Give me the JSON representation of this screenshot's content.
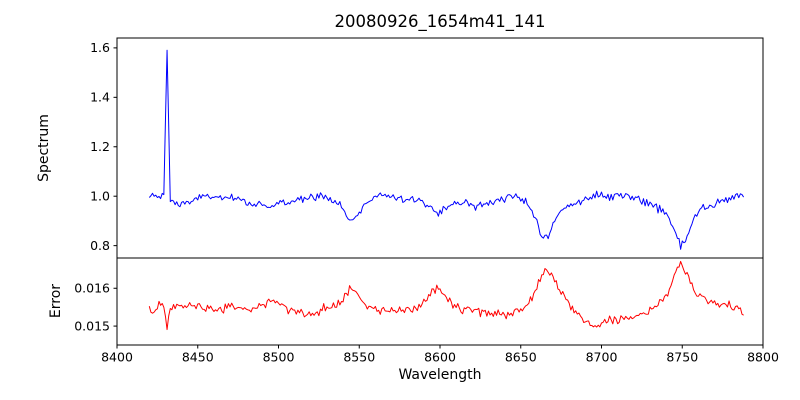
{
  "chart_data": {
    "type": "line",
    "title": "20080926_1654m41_141",
    "xlabel": "Wavelength",
    "xlim": [
      8400,
      8800
    ],
    "xticks": [
      8400,
      8450,
      8500,
      8550,
      8600,
      8650,
      8700,
      8750,
      8800
    ],
    "xtick_labels": [
      "8400",
      "8450",
      "8500",
      "8550",
      "8600",
      "8650",
      "8700",
      "8750",
      "8800"
    ],
    "grid": false,
    "legend": "none",
    "x": [
      8420,
      8423,
      8426,
      8429,
      8431,
      8433,
      8436,
      8440,
      8444,
      8448,
      8452,
      8456,
      8460,
      8464,
      8468,
      8472,
      8476,
      8480,
      8484,
      8488,
      8492,
      8496,
      8500,
      8504,
      8508,
      8512,
      8516,
      8520,
      8524,
      8528,
      8532,
      8536,
      8540,
      8544,
      8547,
      8550,
      8554,
      8558,
      8562,
      8566,
      8570,
      8574,
      8578,
      8582,
      8586,
      8590,
      8594,
      8598,
      8601,
      8605,
      8609,
      8613,
      8617,
      8621,
      8625,
      8629,
      8633,
      8637,
      8641,
      8645,
      8649,
      8653,
      8657,
      8661,
      8664,
      8667,
      8670,
      8674,
      8678,
      8682,
      8686,
      8690,
      8694,
      8698,
      8702,
      8706,
      8710,
      8714,
      8718,
      8722,
      8726,
      8730,
      8734,
      8738,
      8742,
      8746,
      8749,
      8752,
      8755,
      8758,
      8762,
      8766,
      8770,
      8774,
      8778,
      8782,
      8786,
      8788
    ],
    "panels": [
      {
        "name": "spectrum",
        "ylabel": "Spectrum",
        "line_color": "#0000ff",
        "ylim": [
          0.75,
          1.64
        ],
        "yticks": [
          0.8,
          1.0,
          1.2,
          1.4,
          1.6
        ],
        "ytick_labels": [
          "0.8",
          "1.0",
          "1.2",
          "1.4",
          "1.6"
        ],
        "noise_sigma": 0.008,
        "y": [
          1.0,
          0.995,
          1.0,
          1.005,
          1.59,
          0.985,
          0.97,
          0.972,
          0.975,
          0.985,
          0.995,
          1.0,
          1.0,
          0.995,
          0.985,
          0.99,
          0.985,
          0.972,
          0.968,
          0.972,
          0.962,
          0.96,
          0.968,
          0.972,
          0.975,
          0.985,
          0.995,
          1.002,
          1.005,
          1.0,
          0.99,
          0.975,
          0.945,
          0.905,
          0.9,
          0.935,
          0.97,
          0.995,
          1.005,
          1.005,
          1.0,
          0.998,
          0.995,
          0.99,
          0.985,
          0.972,
          0.95,
          0.935,
          0.945,
          0.96,
          0.97,
          0.975,
          0.972,
          0.963,
          0.96,
          0.972,
          0.982,
          0.988,
          0.992,
          0.995,
          0.992,
          0.98,
          0.945,
          0.88,
          0.838,
          0.835,
          0.885,
          0.93,
          0.955,
          0.97,
          0.978,
          0.988,
          0.995,
          1.0,
          1.002,
          1.005,
          1.005,
          1.0,
          0.998,
          0.992,
          0.985,
          0.975,
          0.962,
          0.942,
          0.908,
          0.848,
          0.8,
          0.818,
          0.87,
          0.915,
          0.945,
          0.958,
          0.968,
          0.975,
          0.985,
          0.992,
          1.0,
          1.01
        ],
        "features": {
          "emission_spike": {
            "x": 8431,
            "peak": 1.59
          },
          "absorption_minima": [
            {
              "x": 8545,
              "y": 0.9
            },
            {
              "x": 8598,
              "y": 0.935
            },
            {
              "x": 8665,
              "y": 0.835
            },
            {
              "x": 8749,
              "y": 0.8
            }
          ]
        }
      },
      {
        "name": "error",
        "ylabel": "Error",
        "line_color": "#ff0000",
        "ylim": [
          0.0145,
          0.0168
        ],
        "yticks": [
          0.015,
          0.016
        ],
        "ytick_labels": [
          "0.015",
          "0.016"
        ],
        "noise_sigma": 6e-05,
        "y": [
          0.01545,
          0.01538,
          0.0155,
          0.01552,
          0.01492,
          0.01548,
          0.01552,
          0.01556,
          0.0156,
          0.01556,
          0.01552,
          0.01548,
          0.01545,
          0.01545,
          0.01553,
          0.0155,
          0.01547,
          0.01544,
          0.01545,
          0.01553,
          0.01558,
          0.0157,
          0.0156,
          0.0155,
          0.01545,
          0.01537,
          0.01531,
          0.0153,
          0.01535,
          0.01543,
          0.0155,
          0.01556,
          0.01573,
          0.01598,
          0.016,
          0.01578,
          0.01556,
          0.01546,
          0.0154,
          0.01538,
          0.0154,
          0.0154,
          0.01543,
          0.01546,
          0.0155,
          0.01563,
          0.01585,
          0.016,
          0.0159,
          0.01568,
          0.01553,
          0.01548,
          0.01545,
          0.01545,
          0.0154,
          0.01536,
          0.01534,
          0.01533,
          0.0153,
          0.01533,
          0.0154,
          0.01552,
          0.01575,
          0.01615,
          0.01645,
          0.01648,
          0.0163,
          0.01595,
          0.01568,
          0.0155,
          0.01532,
          0.01515,
          0.01502,
          0.01495,
          0.01505,
          0.01514,
          0.01519,
          0.01523,
          0.01526,
          0.0153,
          0.01533,
          0.0154,
          0.01552,
          0.01572,
          0.016,
          0.01645,
          0.01668,
          0.01645,
          0.01615,
          0.01592,
          0.01578,
          0.0157,
          0.01562,
          0.01556,
          0.0156,
          0.01552,
          0.01545,
          0.01528
        ]
      }
    ]
  }
}
